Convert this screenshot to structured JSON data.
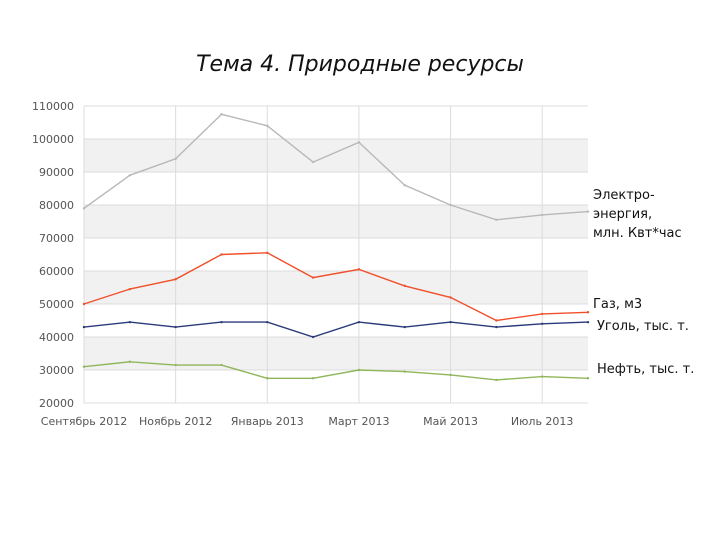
{
  "title": "Тема 4. Природные ресурсы",
  "chart_data": {
    "type": "line",
    "title": "Тема 4. Природные ресурсы",
    "xlabel": "",
    "ylabel": "",
    "ylim": [
      20000,
      110000
    ],
    "yticks": [
      20000,
      30000,
      40000,
      50000,
      60000,
      70000,
      80000,
      90000,
      100000,
      110000
    ],
    "x": [
      "2012-09",
      "2012-10",
      "2012-11",
      "2012-12",
      "2013-01",
      "2013-02",
      "2013-03",
      "2013-04",
      "2013-05",
      "2013-06",
      "2013-07",
      "2013-08"
    ],
    "x_tick_labels": [
      "Сентябрь 2012",
      "Ноябрь 2012",
      "Январь 2013",
      "Март 2013",
      "Май 2013",
      "Июль 2013"
    ],
    "grid": true,
    "legend": "right",
    "series": [
      {
        "name": "Электро-\nэнергия,\nмлн. Квт*час",
        "color": "#b8b8b8",
        "values": [
          79000,
          89000,
          94000,
          107500,
          104000,
          93000,
          99000,
          86000,
          80000,
          75500,
          77000,
          78000
        ]
      },
      {
        "name": "Газ, м3",
        "color": "#f0502a",
        "values": [
          50000,
          54500,
          57500,
          65000,
          65500,
          58000,
          60500,
          55500,
          52000,
          45000,
          47000,
          47500
        ]
      },
      {
        "name": "Уголь, тыс. т.",
        "color": "#2b3a7a",
        "values": [
          43000,
          44500,
          43000,
          44500,
          44500,
          40000,
          44500,
          43000,
          44500,
          43000,
          44000,
          44500
        ]
      },
      {
        "name": "Нефть, тыс. т.",
        "color": "#8fb65a",
        "values": [
          31000,
          32500,
          31500,
          31500,
          27500,
          27500,
          30000,
          29500,
          28500,
          27000,
          28000,
          27500
        ]
      }
    ]
  }
}
